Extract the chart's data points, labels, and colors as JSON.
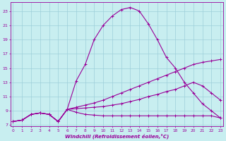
{
  "background_color": "#c8eef0",
  "grid_color": "#9dcfda",
  "line_color": "#990099",
  "xlim": [
    -0.3,
    23.3
  ],
  "ylim": [
    6.8,
    24.2
  ],
  "xlabel": "Windchill (Refroidissement éolien,°C)",
  "xtick_vals": [
    0,
    1,
    2,
    3,
    4,
    5,
    6,
    7,
    8,
    9,
    10,
    11,
    12,
    13,
    14,
    15,
    16,
    17,
    18,
    19,
    20,
    21,
    22,
    23
  ],
  "ytick_vals": [
    7,
    9,
    11,
    13,
    15,
    17,
    19,
    21,
    23
  ],
  "curve1_x": [
    0,
    1,
    2,
    3,
    4,
    5,
    6,
    7,
    8,
    9,
    10,
    11,
    12,
    13,
    14,
    15,
    16,
    17,
    18,
    19,
    20,
    21,
    22,
    23
  ],
  "curve1_y": [
    7.5,
    7.7,
    8.5,
    8.7,
    8.5,
    7.5,
    9.2,
    13.2,
    15.5,
    19.0,
    21.0,
    22.3,
    23.2,
    23.5,
    23.0,
    21.2,
    19.0,
    16.5,
    15.0,
    13.0,
    11.5,
    10.0,
    9.0,
    8.0
  ],
  "curve2_x": [
    0,
    1,
    2,
    3,
    4,
    5,
    6,
    7,
    8,
    9,
    10,
    11,
    12,
    13,
    14,
    15,
    16,
    17,
    18,
    19,
    20,
    21,
    22,
    23
  ],
  "curve2_y": [
    7.5,
    7.7,
    8.5,
    8.7,
    8.5,
    7.5,
    9.2,
    9.5,
    9.8,
    10.1,
    10.5,
    11.0,
    11.5,
    12.0,
    12.5,
    13.0,
    13.5,
    14.0,
    14.5,
    15.0,
    15.5,
    15.8,
    16.0,
    16.2
  ],
  "curve3_x": [
    0,
    1,
    2,
    3,
    4,
    5,
    6,
    7,
    8,
    9,
    10,
    11,
    12,
    13,
    14,
    15,
    16,
    17,
    18,
    19,
    20,
    21,
    22,
    23
  ],
  "curve3_y": [
    7.5,
    7.7,
    8.5,
    8.7,
    8.5,
    7.5,
    9.2,
    9.3,
    9.4,
    9.5,
    9.6,
    9.8,
    10.0,
    10.3,
    10.6,
    11.0,
    11.3,
    11.7,
    12.0,
    12.5,
    13.0,
    12.5,
    11.5,
    10.5
  ],
  "curve4_x": [
    0,
    1,
    2,
    3,
    4,
    5,
    6,
    7,
    8,
    9,
    10,
    11,
    12,
    13,
    14,
    15,
    16,
    17,
    18,
    19,
    20,
    21,
    22,
    23
  ],
  "curve4_y": [
    7.5,
    7.7,
    8.5,
    8.7,
    8.5,
    7.5,
    9.2,
    8.8,
    8.5,
    8.4,
    8.3,
    8.3,
    8.3,
    8.3,
    8.3,
    8.3,
    8.3,
    8.3,
    8.3,
    8.3,
    8.3,
    8.3,
    8.3,
    8.0
  ]
}
